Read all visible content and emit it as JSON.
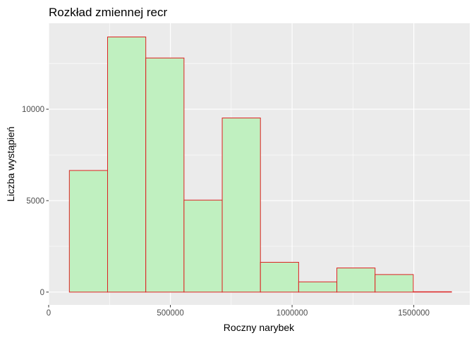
{
  "chart_data": {
    "type": "bar",
    "title": "Rozkład zmiennej recr",
    "xlabel": "Roczny narybek",
    "ylabel": "Liczba wystąpień",
    "xlim": [
      0,
      1730000
    ],
    "ylim": [
      -700,
      14700
    ],
    "x_ticks": [
      0,
      500000,
      1000000,
      1500000
    ],
    "x_tick_labels": [
      "0",
      "500000",
      "1000000",
      "1500000"
    ],
    "y_ticks": [
      0,
      5000,
      10000
    ],
    "y_tick_labels": [
      "0",
      "5000",
      "10000"
    ],
    "bins": [
      {
        "x0": 85000,
        "x1": 242000,
        "count": 6650
      },
      {
        "x0": 242000,
        "x1": 399000,
        "count": 13950
      },
      {
        "x0": 399000,
        "x1": 556000,
        "count": 12800
      },
      {
        "x0": 556000,
        "x1": 713000,
        "count": 5030
      },
      {
        "x0": 713000,
        "x1": 870000,
        "count": 9520
      },
      {
        "x0": 870000,
        "x1": 1027000,
        "count": 1630
      },
      {
        "x0": 1027000,
        "x1": 1184000,
        "count": 560
      },
      {
        "x0": 1184000,
        "x1": 1341000,
        "count": 1320
      },
      {
        "x0": 1341000,
        "x1": 1498000,
        "count": 960
      },
      {
        "x0": 1498000,
        "x1": 1655000,
        "count": 20
      }
    ],
    "grid": true,
    "colors": {
      "panel_background": "#ebebeb",
      "grid_major": "#ffffff",
      "bar_fill": "#c0f0c0",
      "bar_outline": "#dd2222"
    }
  }
}
